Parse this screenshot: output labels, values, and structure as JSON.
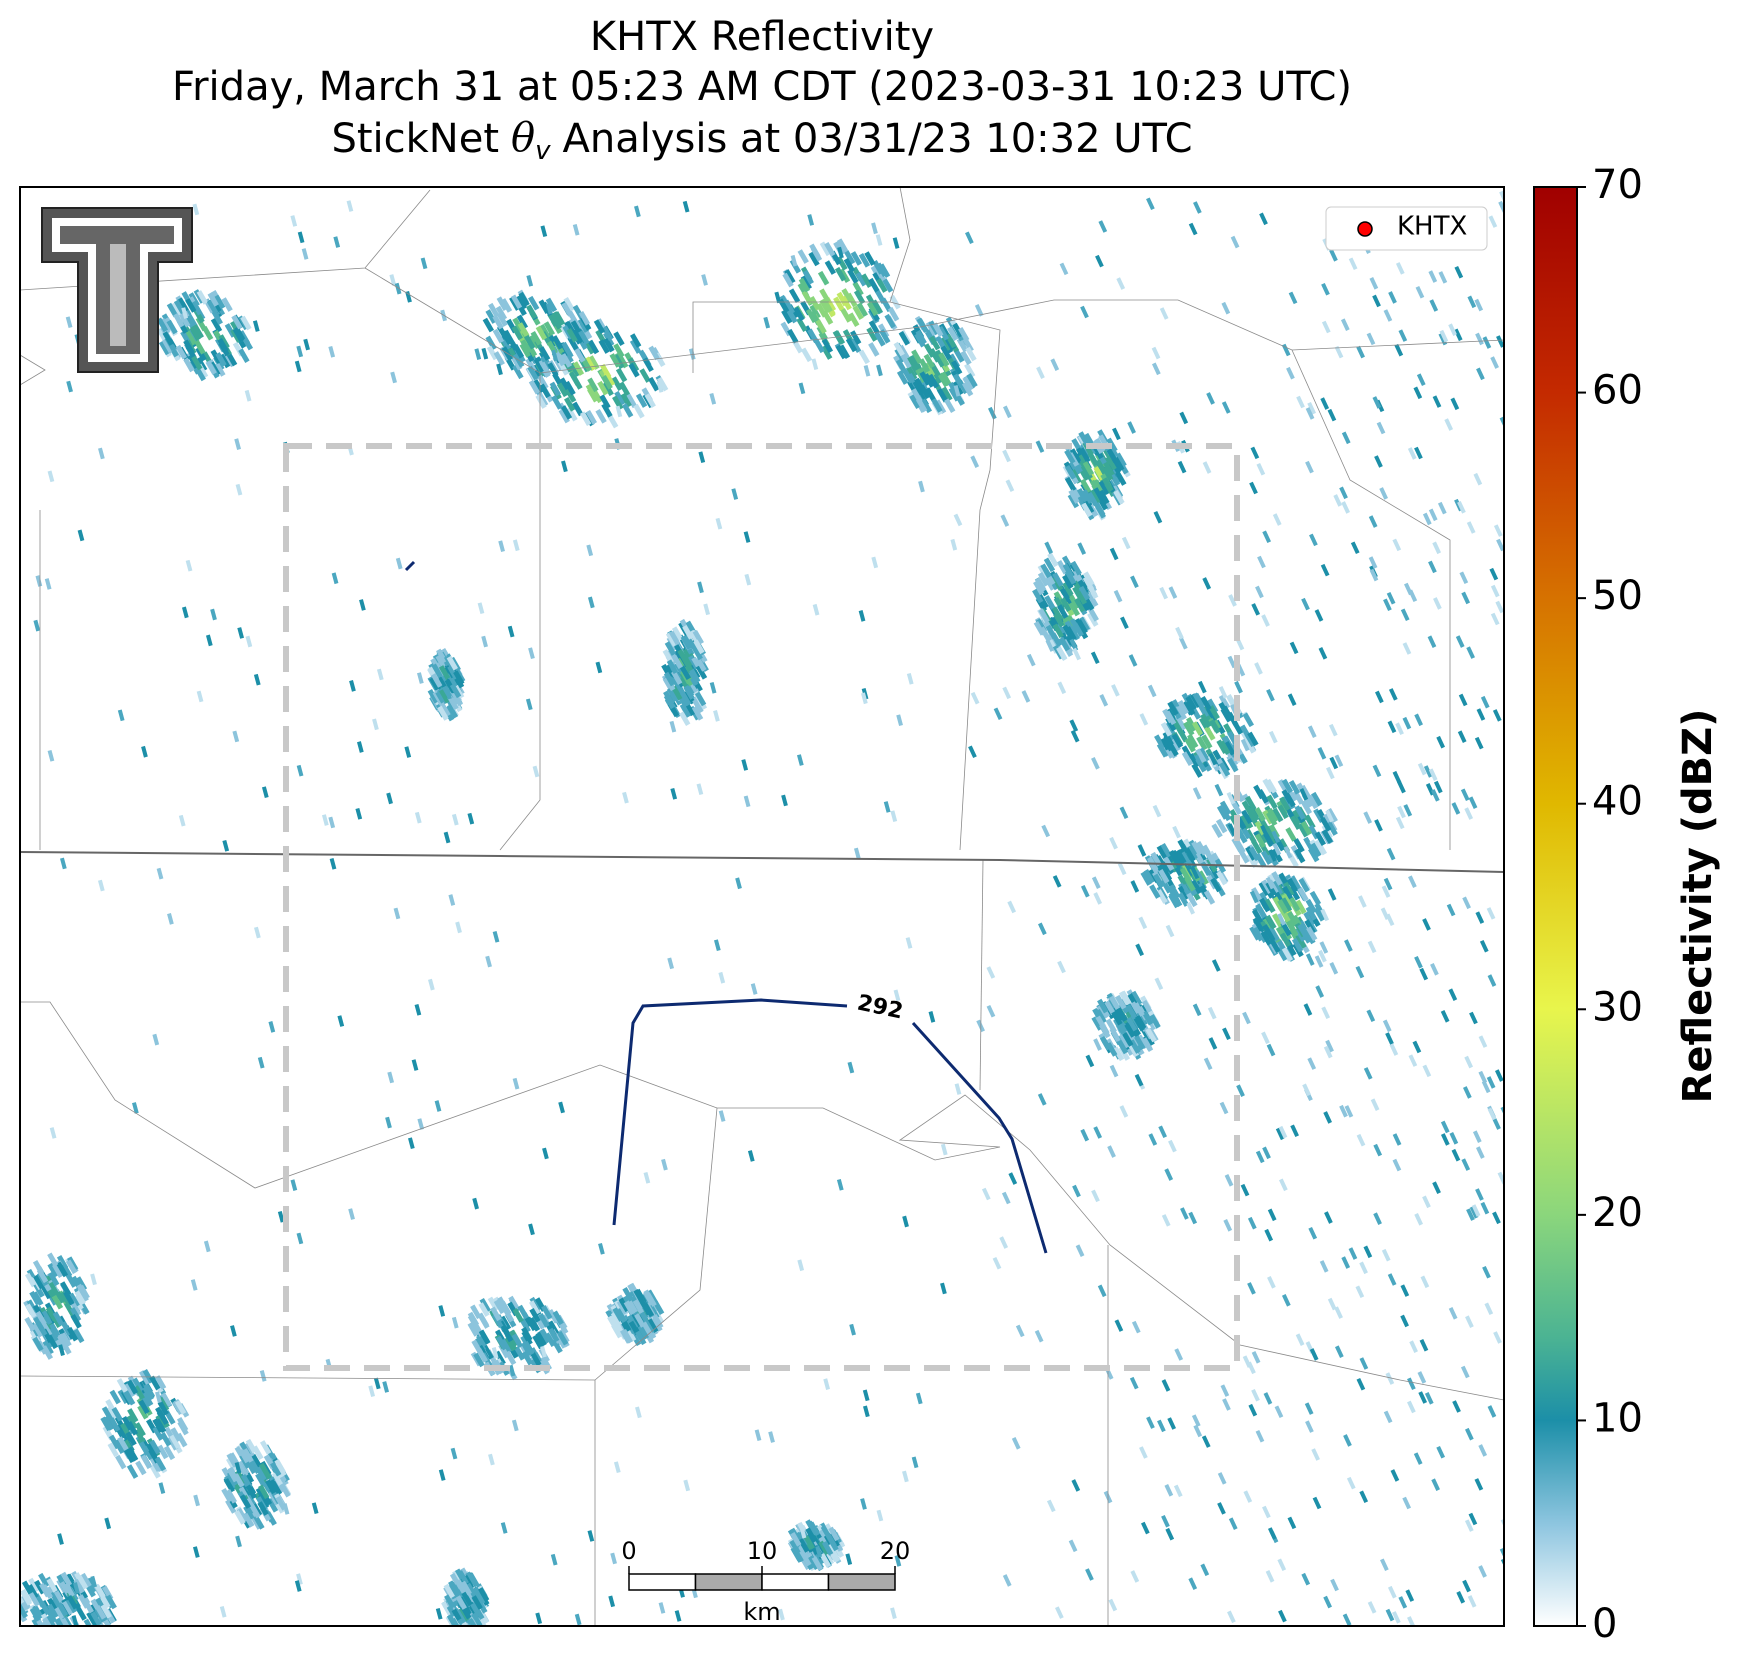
{
  "title_lines": [
    "KHTX Reflectivity",
    "Friday, March 31 at 05:23 AM CDT (2023-03-31 10:23 UTC)"
  ],
  "subtitle": {
    "prefix": "StickNet",
    "symbol": "θ",
    "subscript": "v",
    "suffix": "Analysis at 03/31/23 10:32 UTC"
  },
  "legend": {
    "label": "KHTX",
    "color": "#ff0000",
    "corner": "upper right"
  },
  "contour": {
    "level": 292,
    "color": "#0d2a70"
  },
  "colorbar": {
    "label": "Reflectivity (dBZ)",
    "lim": [
      0,
      70
    ],
    "ticks": [
      0,
      10,
      20,
      30,
      40,
      50,
      60,
      70
    ]
  },
  "scale_bar": {
    "ticks": [
      0,
      10,
      20
    ],
    "unit": "km"
  }
}
